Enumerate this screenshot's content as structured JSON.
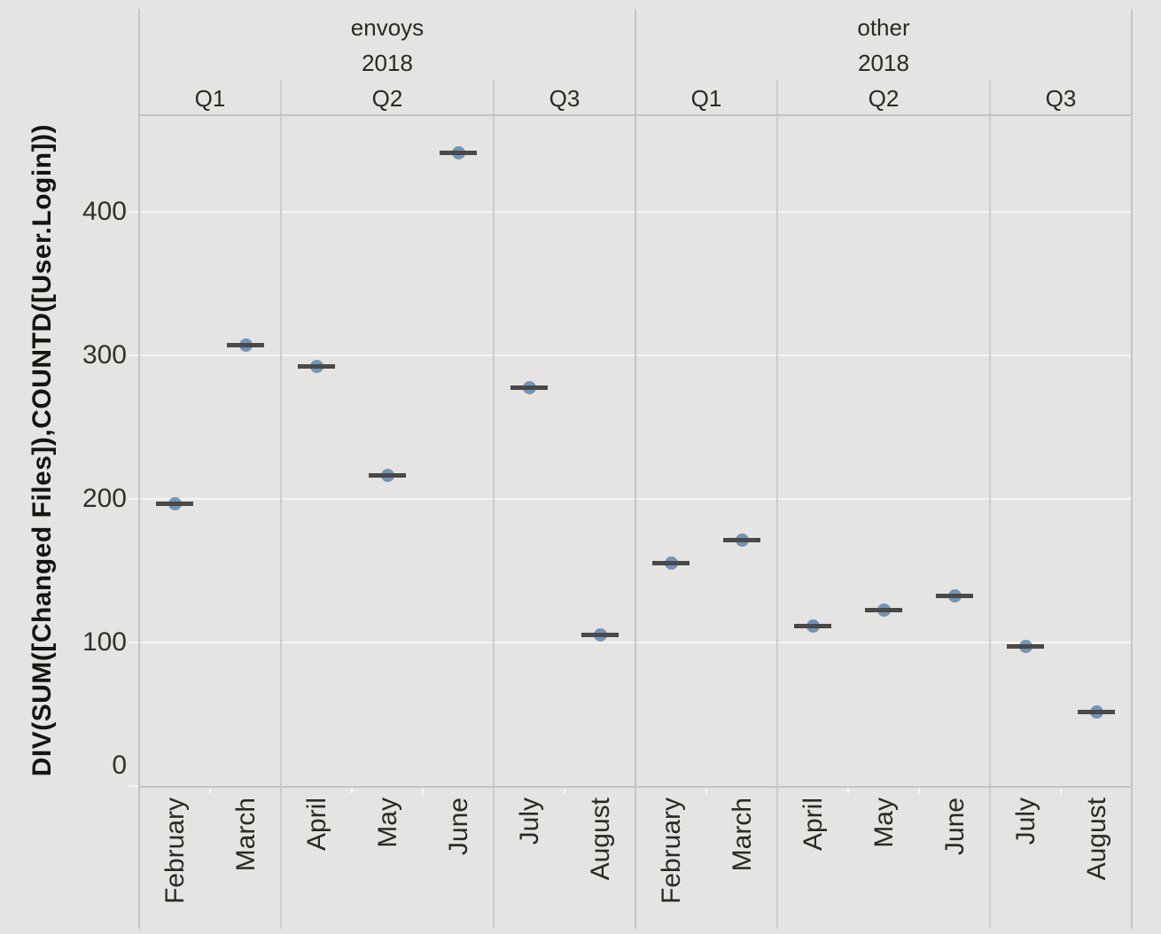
{
  "colors": {
    "background": "#e5e4e2",
    "gridline": "#f6f5f3",
    "pane_border": "#c6c4c1",
    "mark_bar": "#49494a",
    "mark_dot": "#4e79a7",
    "text": "#2b2922"
  },
  "chart_data": {
    "type": "gantt",
    "title": "",
    "ylabel": "DIV(SUM([Changed Files]),COUNTD([User.Login]))",
    "xlabel": "",
    "y_ticks": [
      0,
      100,
      200,
      300,
      400
    ],
    "ylim": [
      0,
      467
    ],
    "grid": "horizontal-on",
    "legend": "none",
    "groups": [
      {
        "label": "envoys",
        "year": "2018",
        "quarters": [
          {
            "label": "Q1",
            "points": [
              {
                "month": "February",
                "value": 196
              },
              {
                "month": "March",
                "value": 307
              }
            ]
          },
          {
            "label": "Q2",
            "points": [
              {
                "month": "April",
                "value": 292
              },
              {
                "month": "May",
                "value": 216
              },
              {
                "month": "June",
                "value": 441
              }
            ]
          },
          {
            "label": "Q3",
            "points": [
              {
                "month": "July",
                "value": 277
              },
              {
                "month": "August",
                "value": 105
              }
            ]
          }
        ]
      },
      {
        "label": "other",
        "year": "2018",
        "quarters": [
          {
            "label": "Q1",
            "points": [
              {
                "month": "February",
                "value": 155
              },
              {
                "month": "March",
                "value": 171
              }
            ]
          },
          {
            "label": "Q2",
            "points": [
              {
                "month": "April",
                "value": 111
              },
              {
                "month": "May",
                "value": 122
              },
              {
                "month": "June",
                "value": 132
              }
            ]
          },
          {
            "label": "Q3",
            "points": [
              {
                "month": "July",
                "value": 97
              },
              {
                "month": "August",
                "value": 51
              }
            ]
          }
        ]
      }
    ]
  }
}
